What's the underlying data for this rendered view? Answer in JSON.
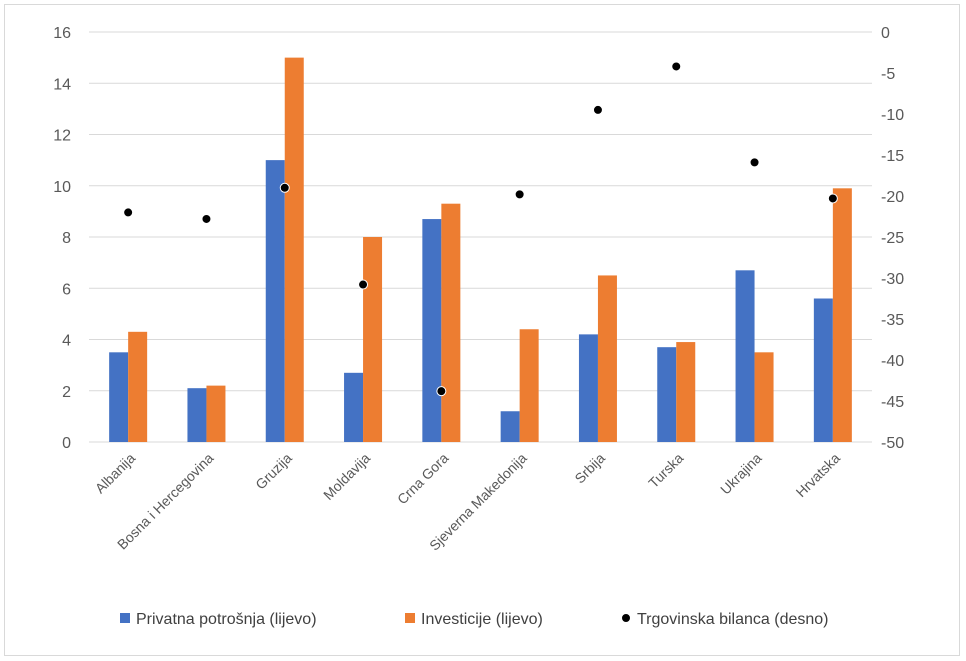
{
  "chart_data": {
    "type": "bar",
    "categories": [
      "Albanija",
      "Bosna i Hercegovina",
      "Gruzija",
      "Moldavija",
      "Crna Gora",
      "Sjeverna Makedonija",
      "Srbija",
      "Turska",
      "Ukrajina",
      "Hrvatska"
    ],
    "series": [
      {
        "name": "Privatna potrošnja (lijevo)",
        "type": "bar",
        "axis": "left",
        "color": "#4472c4",
        "values": [
          3.5,
          2.1,
          11.0,
          2.7,
          8.7,
          1.2,
          4.2,
          3.7,
          6.7,
          5.6
        ]
      },
      {
        "name": "Investicije (lijevo)",
        "type": "bar",
        "axis": "left",
        "color": "#ed7d31",
        "values": [
          4.3,
          2.2,
          15.0,
          8.0,
          9.3,
          4.4,
          6.5,
          3.9,
          3.5,
          9.9
        ]
      },
      {
        "name": "Trgovinska bilanca (desno)",
        "type": "scatter",
        "axis": "right",
        "color": "#000000",
        "values": [
          -22.0,
          -22.8,
          -19.0,
          -30.8,
          -43.8,
          -19.8,
          -9.5,
          -4.2,
          -15.9,
          -20.3
        ]
      }
    ],
    "y_left": {
      "range": [
        0,
        16
      ],
      "ticks": [
        "0",
        "2",
        "4",
        "6",
        "8",
        "10",
        "12",
        "14",
        "16"
      ]
    },
    "y_right": {
      "range": [
        -50,
        0
      ],
      "ticks": [
        "0",
        "-5",
        "-10",
        "-15",
        "-20",
        "-25",
        "-30",
        "-35",
        "-40",
        "-45",
        "-50"
      ]
    },
    "grid": true,
    "legend_position": "bottom"
  }
}
